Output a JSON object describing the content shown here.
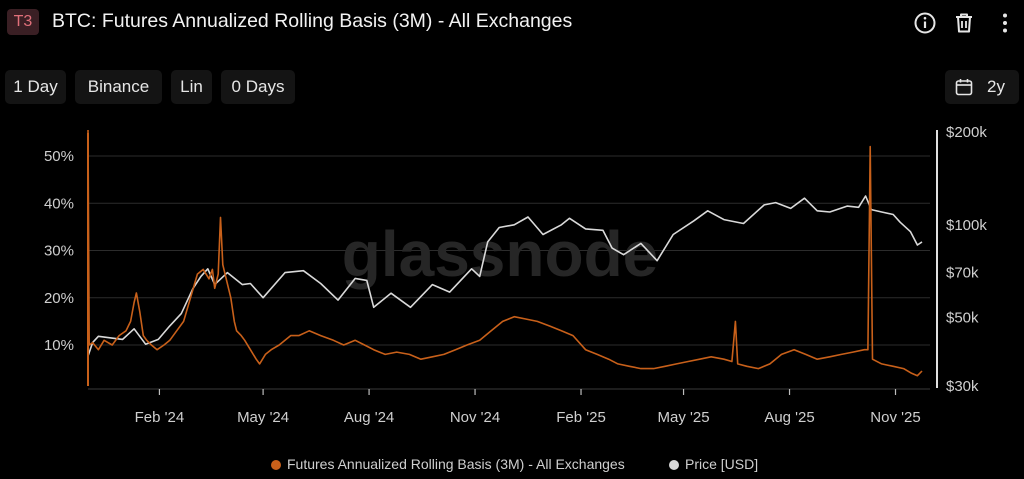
{
  "header": {
    "badge": "T3",
    "title": "BTC: Futures Annualized Rolling Basis (3M) - All Exchanges"
  },
  "toolbar": {
    "resolution": "1 Day",
    "exchange": "Binance",
    "scale": "Lin",
    "smoothing": "0 Days",
    "range": "2y"
  },
  "watermark": "glassnode",
  "colors": {
    "basis": "#c8601a",
    "price": "#d9d9d9",
    "grid": "#2c2c2c",
    "text": "#cfcfcf"
  },
  "chart_data": {
    "type": "line",
    "xticks": [
      "Feb '24",
      "May '24",
      "Aug '24",
      "Nov '24",
      "Feb '25",
      "May '25",
      "Aug '25",
      "Nov '25"
    ],
    "x_start": "2023-12-01",
    "x_end": "2025-11-24",
    "y_left": {
      "ticks": [
        "10%",
        "20%",
        "30%",
        "40%",
        "50%"
      ],
      "values": [
        10,
        20,
        30,
        40,
        50
      ],
      "range": [
        1,
        56
      ]
    },
    "y_right": {
      "scale": "log",
      "ticks": [
        "$30k",
        "$50k",
        "$70k",
        "$100k",
        "$200k"
      ],
      "values": [
        30000,
        50000,
        70000,
        100000,
        200000
      ],
      "range": [
        30000,
        200000
      ]
    },
    "series": [
      {
        "name": "Futures Annualized Rolling Basis (3M) - All Exchanges",
        "axis": "left",
        "unit": "%",
        "points": [
          [
            "2023-12-01",
            56
          ],
          [
            "2023-12-02",
            10
          ],
          [
            "2023-12-05",
            10.5
          ],
          [
            "2023-12-10",
            9
          ],
          [
            "2023-12-15",
            11
          ],
          [
            "2023-12-22",
            10
          ],
          [
            "2023-12-28",
            12
          ],
          [
            "2024-01-03",
            13
          ],
          [
            "2024-01-07",
            15
          ],
          [
            "2024-01-10",
            19
          ],
          [
            "2024-01-12",
            21
          ],
          [
            "2024-01-15",
            17
          ],
          [
            "2024-01-18",
            12
          ],
          [
            "2024-01-21",
            11
          ],
          [
            "2024-01-25",
            10
          ],
          [
            "2024-01-30",
            9
          ],
          [
            "2024-02-05",
            10
          ],
          [
            "2024-02-10",
            11
          ],
          [
            "2024-02-16",
            13
          ],
          [
            "2024-02-22",
            15
          ],
          [
            "2024-02-28",
            20
          ],
          [
            "2024-03-05",
            25
          ],
          [
            "2024-03-10",
            26
          ],
          [
            "2024-03-15",
            24
          ],
          [
            "2024-03-18",
            26
          ],
          [
            "2024-03-20",
            22
          ],
          [
            "2024-03-23",
            25
          ],
          [
            "2024-03-25",
            37
          ],
          [
            "2024-03-27",
            27
          ],
          [
            "2024-03-30",
            24
          ],
          [
            "2024-04-03",
            20
          ],
          [
            "2024-04-06",
            15
          ],
          [
            "2024-04-08",
            13
          ],
          [
            "2024-04-12",
            12
          ],
          [
            "2024-04-15",
            11
          ],
          [
            "2024-04-20",
            9
          ],
          [
            "2024-04-25",
            7
          ],
          [
            "2024-04-28",
            6
          ],
          [
            "2024-05-03",
            8
          ],
          [
            "2024-05-08",
            9
          ],
          [
            "2024-05-15",
            10
          ],
          [
            "2024-05-20",
            11
          ],
          [
            "2024-05-25",
            12
          ],
          [
            "2024-06-01",
            12
          ],
          [
            "2024-06-10",
            13
          ],
          [
            "2024-06-20",
            12
          ],
          [
            "2024-07-01",
            11
          ],
          [
            "2024-07-10",
            10
          ],
          [
            "2024-07-20",
            11
          ],
          [
            "2024-07-28",
            10
          ],
          [
            "2024-08-05",
            9
          ],
          [
            "2024-08-15",
            8
          ],
          [
            "2024-08-25",
            8.5
          ],
          [
            "2024-09-05",
            8
          ],
          [
            "2024-09-15",
            7
          ],
          [
            "2024-09-25",
            7.5
          ],
          [
            "2024-10-05",
            8
          ],
          [
            "2024-10-15",
            9
          ],
          [
            "2024-10-25",
            10
          ],
          [
            "2024-11-05",
            11
          ],
          [
            "2024-11-15",
            13
          ],
          [
            "2024-11-25",
            15
          ],
          [
            "2024-12-05",
            16
          ],
          [
            "2024-12-15",
            15.5
          ],
          [
            "2024-12-25",
            15
          ],
          [
            "2025-01-05",
            14
          ],
          [
            "2025-01-15",
            13
          ],
          [
            "2025-01-25",
            12
          ],
          [
            "2025-02-05",
            9
          ],
          [
            "2025-02-15",
            8
          ],
          [
            "2025-02-25",
            7
          ],
          [
            "2025-03-05",
            6
          ],
          [
            "2025-03-15",
            5.5
          ],
          [
            "2025-03-25",
            5
          ],
          [
            "2025-04-05",
            5
          ],
          [
            "2025-04-15",
            5.5
          ],
          [
            "2025-04-25",
            6
          ],
          [
            "2025-05-05",
            6.5
          ],
          [
            "2025-05-15",
            7
          ],
          [
            "2025-05-25",
            7.5
          ],
          [
            "2025-06-05",
            7
          ],
          [
            "2025-06-12",
            6.5
          ],
          [
            "2025-06-15",
            15
          ],
          [
            "2025-06-17",
            6
          ],
          [
            "2025-06-25",
            5.5
          ],
          [
            "2025-07-05",
            5
          ],
          [
            "2025-07-15",
            6
          ],
          [
            "2025-07-25",
            8
          ],
          [
            "2025-08-05",
            9
          ],
          [
            "2025-08-15",
            8
          ],
          [
            "2025-08-25",
            7
          ],
          [
            "2025-09-05",
            7.5
          ],
          [
            "2025-09-15",
            8
          ],
          [
            "2025-09-25",
            8.5
          ],
          [
            "2025-10-05",
            9
          ],
          [
            "2025-10-08",
            9
          ],
          [
            "2025-10-10",
            52
          ],
          [
            "2025-10-12",
            7
          ],
          [
            "2025-10-20",
            6
          ],
          [
            "2025-10-30",
            5.5
          ],
          [
            "2025-11-08",
            5
          ],
          [
            "2025-11-15",
            4
          ],
          [
            "2025-11-20",
            3.5
          ],
          [
            "2025-11-24",
            4.5
          ]
        ]
      },
      {
        "name": "Price [USD]",
        "axis": "right",
        "unit": "USD",
        "points": [
          [
            "2023-12-01",
            37500
          ],
          [
            "2023-12-05",
            41500
          ],
          [
            "2023-12-10",
            43500
          ],
          [
            "2023-12-20",
            43000
          ],
          [
            "2023-12-31",
            42500
          ],
          [
            "2024-01-10",
            46000
          ],
          [
            "2024-01-20",
            41000
          ],
          [
            "2024-01-31",
            42500
          ],
          [
            "2024-02-10",
            47000
          ],
          [
            "2024-02-20",
            51500
          ],
          [
            "2024-03-01",
            62000
          ],
          [
            "2024-03-08",
            68000
          ],
          [
            "2024-03-14",
            72000
          ],
          [
            "2024-03-20",
            64000
          ],
          [
            "2024-03-31",
            70000
          ],
          [
            "2024-04-13",
            64000
          ],
          [
            "2024-04-20",
            64500
          ],
          [
            "2024-05-01",
            58000
          ],
          [
            "2024-05-20",
            70000
          ],
          [
            "2024-06-05",
            71000
          ],
          [
            "2024-06-20",
            64500
          ],
          [
            "2024-07-05",
            57000
          ],
          [
            "2024-07-20",
            67000
          ],
          [
            "2024-07-30",
            66000
          ],
          [
            "2024-08-05",
            54000
          ],
          [
            "2024-08-20",
            60000
          ],
          [
            "2024-09-06",
            54000
          ],
          [
            "2024-09-25",
            64000
          ],
          [
            "2024-10-10",
            60500
          ],
          [
            "2024-10-29",
            72000
          ],
          [
            "2024-11-05",
            68000
          ],
          [
            "2024-11-12",
            88000
          ],
          [
            "2024-11-22",
            98000
          ],
          [
            "2024-12-05",
            100000
          ],
          [
            "2024-12-17",
            106000
          ],
          [
            "2024-12-30",
            93000
          ],
          [
            "2025-01-15",
            100000
          ],
          [
            "2025-01-22",
            105000
          ],
          [
            "2025-02-05",
            97000
          ],
          [
            "2025-02-20",
            96000
          ],
          [
            "2025-02-28",
            84000
          ],
          [
            "2025-03-10",
            80000
          ],
          [
            "2025-03-25",
            87000
          ],
          [
            "2025-04-08",
            76500
          ],
          [
            "2025-04-22",
            93000
          ],
          [
            "2025-05-10",
            103000
          ],
          [
            "2025-05-22",
            111000
          ],
          [
            "2025-06-05",
            104000
          ],
          [
            "2025-06-22",
            101000
          ],
          [
            "2025-07-10",
            116000
          ],
          [
            "2025-07-20",
            118000
          ],
          [
            "2025-08-02",
            113000
          ],
          [
            "2025-08-14",
            122000
          ],
          [
            "2025-08-25",
            111000
          ],
          [
            "2025-09-05",
            110000
          ],
          [
            "2025-09-20",
            115000
          ],
          [
            "2025-09-30",
            114000
          ],
          [
            "2025-10-06",
            124000
          ],
          [
            "2025-10-11",
            112000
          ],
          [
            "2025-10-20",
            110000
          ],
          [
            "2025-10-30",
            108000
          ],
          [
            "2025-11-05",
            102000
          ],
          [
            "2025-11-14",
            95000
          ],
          [
            "2025-11-20",
            86000
          ],
          [
            "2025-11-24",
            88000
          ]
        ]
      }
    ]
  },
  "legend": [
    {
      "label": "Futures Annualized Rolling Basis (3M) - All Exchanges",
      "color": "#c8601a"
    },
    {
      "label": "Price [USD]",
      "color": "#d9d9d9"
    }
  ]
}
